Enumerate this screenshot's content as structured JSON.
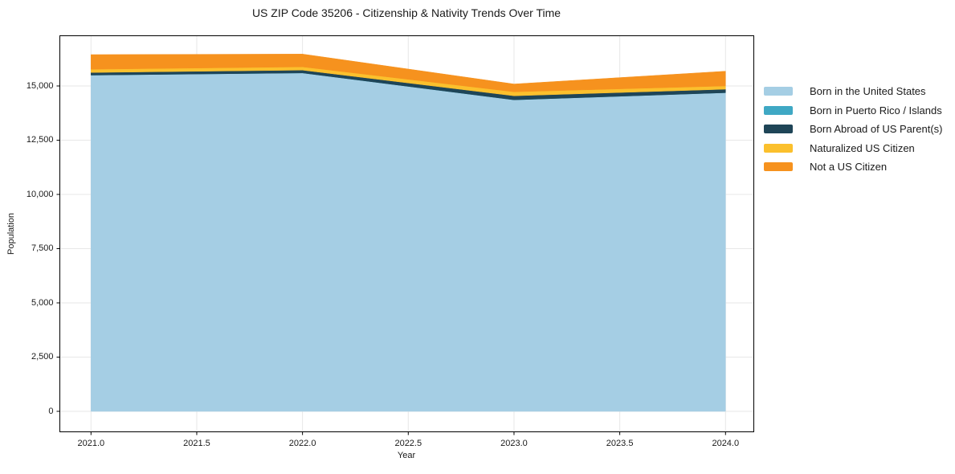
{
  "title": "US ZIP Code 35206 - Citizenship & Nativity Trends Over Time",
  "chart_data": {
    "type": "area",
    "stacked": true,
    "title": "US ZIP Code 35206 - Citizenship & Nativity Trends Over Time",
    "xlabel": "Year",
    "ylabel": "Population",
    "x": [
      2021,
      2022,
      2023,
      2024
    ],
    "xticks": [
      {
        "value": 2021.0,
        "label": "2021.0"
      },
      {
        "value": 2021.5,
        "label": "2021.5"
      },
      {
        "value": 2022.0,
        "label": "2022.0"
      },
      {
        "value": 2022.5,
        "label": "2022.5"
      },
      {
        "value": 2023.0,
        "label": "2023.0"
      },
      {
        "value": 2023.5,
        "label": "2023.5"
      },
      {
        "value": 2024.0,
        "label": "2024.0"
      }
    ],
    "yticks": [
      {
        "value": 0,
        "label": "0"
      },
      {
        "value": 2500,
        "label": "2,500"
      },
      {
        "value": 5000,
        "label": "5,000"
      },
      {
        "value": 7500,
        "label": "7,500"
      },
      {
        "value": 10000,
        "label": "10,000"
      },
      {
        "value": 12500,
        "label": "12,500"
      },
      {
        "value": 15000,
        "label": "15,000"
      }
    ],
    "grid": true,
    "grid_color": "#e7e7e7",
    "box_color": "#000000",
    "legend_position": "right-outside",
    "series": [
      {
        "name": "Born in the United States",
        "color": "#A5CEE4",
        "values": [
          15500,
          15600,
          14360,
          14690
        ]
      },
      {
        "name": "Born in Puerto Rico / Islands",
        "color": "#3FA8C4",
        "values": [
          0,
          0,
          0,
          0
        ]
      },
      {
        "name": "Born Abroad of US Parent(s)",
        "color": "#1F4557",
        "values": [
          120,
          130,
          185,
          160
        ]
      },
      {
        "name": "Naturalized US Citizen",
        "color": "#FBC02D",
        "values": [
          150,
          150,
          185,
          150
        ]
      },
      {
        "name": "Not a US Citizen",
        "color": "#F6921E",
        "values": [
          675,
          590,
          360,
          680
        ]
      }
    ]
  }
}
